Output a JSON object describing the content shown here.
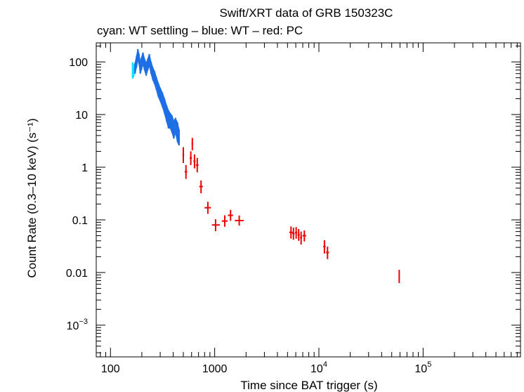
{
  "chart_data": {
    "type": "scatter",
    "title": "Swift/XRT data of GRB 150323C",
    "subtitle": "cyan: WT settling – blue: WT – red: PC",
    "xlabel": "Time since BAT trigger (s)",
    "ylabel": "Count Rate (0.3–10 keV) (s⁻¹)",
    "xscale": "log",
    "yscale": "log",
    "xlim": [
      73,
      860000
    ],
    "ylim": [
      0.00025,
      230
    ],
    "x_tick_labels": [
      {
        "value": 100,
        "base": "100",
        "exp": ""
      },
      {
        "value": 1000,
        "base": "1000",
        "exp": ""
      },
      {
        "value": 10000,
        "base": "10",
        "exp": "4"
      },
      {
        "value": 100000,
        "base": "10",
        "exp": "5"
      }
    ],
    "y_tick_labels": [
      {
        "value": 100,
        "base": "100",
        "exp": ""
      },
      {
        "value": 10,
        "base": "10",
        "exp": ""
      },
      {
        "value": 1,
        "base": "1",
        "exp": ""
      },
      {
        "value": 0.1,
        "base": "0.1",
        "exp": ""
      },
      {
        "value": 0.01,
        "base": "0.01",
        "exp": ""
      },
      {
        "value": 0.001,
        "base": "10",
        "exp": "−3"
      }
    ],
    "colors": {
      "wt_settling": "#00e5ff",
      "wt": "#1e6fe6",
      "pc": "#ee0000",
      "axis": "#000000"
    },
    "series": [
      {
        "name": "WT settling",
        "color": "#00e5ff",
        "style": "band",
        "points": [
          {
            "t": 163,
            "lo": 48,
            "hi": 98
          },
          {
            "t": 166,
            "lo": 52,
            "hi": 90
          },
          {
            "t": 170,
            "lo": 60,
            "hi": 85
          }
        ]
      },
      {
        "name": "WT",
        "color": "#1e6fe6",
        "style": "band",
        "points": [
          {
            "t": 172,
            "lo": 60,
            "hi": 95
          },
          {
            "t": 178,
            "lo": 80,
            "hi": 130
          },
          {
            "t": 183,
            "lo": 110,
            "hi": 175
          },
          {
            "t": 188,
            "lo": 90,
            "hi": 140
          },
          {
            "t": 193,
            "lo": 60,
            "hi": 100
          },
          {
            "t": 198,
            "lo": 70,
            "hi": 120
          },
          {
            "t": 205,
            "lo": 90,
            "hi": 150
          },
          {
            "t": 212,
            "lo": 70,
            "hi": 115
          },
          {
            "t": 220,
            "lo": 55,
            "hi": 95
          },
          {
            "t": 228,
            "lo": 70,
            "hi": 115
          },
          {
            "t": 236,
            "lo": 85,
            "hi": 140
          },
          {
            "t": 245,
            "lo": 60,
            "hi": 100
          },
          {
            "t": 255,
            "lo": 45,
            "hi": 78
          },
          {
            "t": 265,
            "lo": 38,
            "hi": 66
          },
          {
            "t": 275,
            "lo": 30,
            "hi": 52
          },
          {
            "t": 287,
            "lo": 22,
            "hi": 40
          },
          {
            "t": 300,
            "lo": 18,
            "hi": 32
          },
          {
            "t": 315,
            "lo": 14,
            "hi": 26
          },
          {
            "t": 330,
            "lo": 10.5,
            "hi": 20
          },
          {
            "t": 345,
            "lo": 7.5,
            "hi": 15
          },
          {
            "t": 360,
            "lo": 5.5,
            "hi": 12
          },
          {
            "t": 375,
            "lo": 5.5,
            "hi": 10.5
          },
          {
            "t": 390,
            "lo": 4.5,
            "hi": 9.5
          },
          {
            "t": 405,
            "lo": 3.5,
            "hi": 7.5
          },
          {
            "t": 420,
            "lo": 4.5,
            "hi": 8.5
          },
          {
            "t": 440,
            "lo": 3.0,
            "hi": 7.0
          },
          {
            "t": 455,
            "lo": 2.6,
            "hi": 5.2
          }
        ]
      },
      {
        "name": "PC",
        "color": "#ee0000",
        "style": "errorbar",
        "points": [
          {
            "x": 500,
            "xlo": 490,
            "xhi": 510,
            "y": 1.7,
            "ylo": 1.2,
            "yhi": 2.4
          },
          {
            "x": 530,
            "xlo": 515,
            "xhi": 545,
            "y": 0.82,
            "ylo": 0.6,
            "yhi": 1.1
          },
          {
            "x": 590,
            "xlo": 575,
            "xhi": 605,
            "y": 1.5,
            "ylo": 1.1,
            "yhi": 2.0
          },
          {
            "x": 610,
            "xlo": 600,
            "xhi": 620,
            "y": 2.8,
            "ylo": 2.1,
            "yhi": 3.6
          },
          {
            "x": 640,
            "xlo": 625,
            "xhi": 655,
            "y": 1.3,
            "ylo": 0.95,
            "yhi": 1.75
          },
          {
            "x": 680,
            "xlo": 660,
            "xhi": 700,
            "y": 1.1,
            "ylo": 0.8,
            "yhi": 1.5
          },
          {
            "x": 740,
            "xlo": 710,
            "xhi": 770,
            "y": 0.43,
            "ylo": 0.32,
            "yhi": 0.56
          },
          {
            "x": 860,
            "xlo": 800,
            "xhi": 920,
            "y": 0.17,
            "ylo": 0.13,
            "yhi": 0.22
          },
          {
            "x": 1020,
            "xlo": 940,
            "xhi": 1120,
            "y": 0.08,
            "ylo": 0.061,
            "yhi": 0.103
          },
          {
            "x": 1250,
            "xlo": 1170,
            "xhi": 1330,
            "y": 0.095,
            "ylo": 0.074,
            "yhi": 0.122
          },
          {
            "x": 1420,
            "xlo": 1340,
            "xhi": 1500,
            "y": 0.122,
            "ylo": 0.096,
            "yhi": 0.155
          },
          {
            "x": 1720,
            "xlo": 1560,
            "xhi": 1900,
            "y": 0.097,
            "ylo": 0.078,
            "yhi": 0.121
          },
          {
            "x": 5400,
            "xlo": 5200,
            "xhi": 5600,
            "y": 0.058,
            "ylo": 0.044,
            "yhi": 0.075
          },
          {
            "x": 5700,
            "xlo": 5550,
            "xhi": 5850,
            "y": 0.055,
            "ylo": 0.042,
            "yhi": 0.071
          },
          {
            "x": 6050,
            "xlo": 5900,
            "xhi": 6200,
            "y": 0.057,
            "ylo": 0.044,
            "yhi": 0.073
          },
          {
            "x": 6400,
            "xlo": 6250,
            "xhi": 6550,
            "y": 0.052,
            "ylo": 0.04,
            "yhi": 0.067
          },
          {
            "x": 6750,
            "xlo": 6600,
            "xhi": 6900,
            "y": 0.046,
            "ylo": 0.034,
            "yhi": 0.06
          },
          {
            "x": 7250,
            "xlo": 6950,
            "xhi": 7550,
            "y": 0.05,
            "ylo": 0.039,
            "yhi": 0.063
          },
          {
            "x": 11300,
            "xlo": 11000,
            "xhi": 11600,
            "y": 0.031,
            "ylo": 0.023,
            "yhi": 0.041
          },
          {
            "x": 12100,
            "xlo": 11700,
            "xhi": 12500,
            "y": 0.024,
            "ylo": 0.018,
            "yhi": 0.031
          },
          {
            "x": 59000,
            "xlo": 58200,
            "xhi": 59800,
            "y": 0.0085,
            "ylo": 0.0063,
            "yhi": 0.0113
          }
        ]
      }
    ]
  }
}
